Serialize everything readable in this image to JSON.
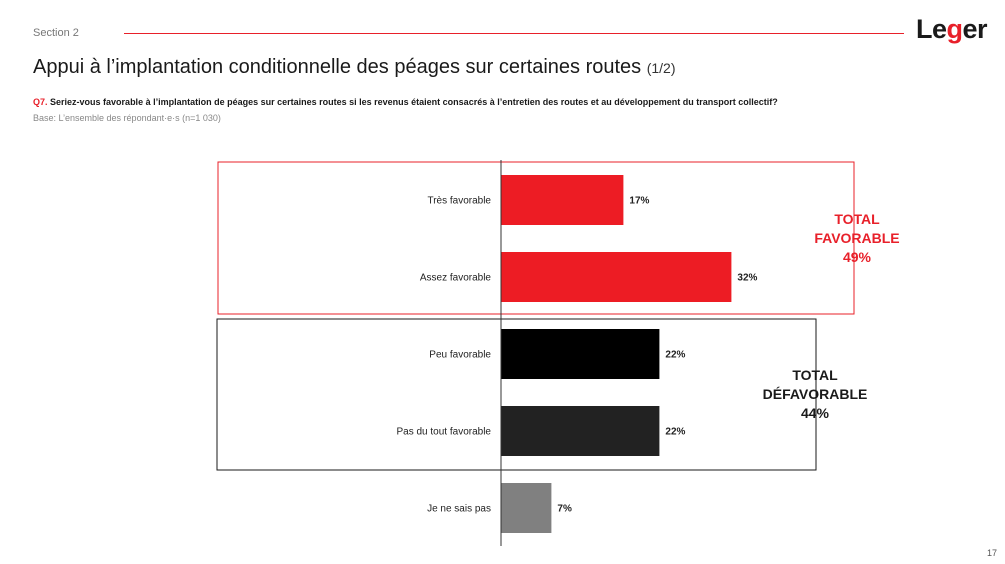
{
  "header": {
    "section": "Section 2",
    "logo_prefix": "Le",
    "logo_accent": "g",
    "logo_suffix": "er",
    "title": "Appui à l’implantation conditionnelle des péages sur certaines routes",
    "title_suffix": "(1/2)",
    "question_number": "Q7.",
    "question_text": "Seriez-vous favorable à l’implantation de péages sur certaines routes si les revenus étaient consacrés à l’entretien des routes et au développement du transport collectif?",
    "base": "Base: L’ensemble des répondant·e·s (n=1 030)"
  },
  "chart_data": {
    "type": "bar",
    "orientation": "horizontal",
    "categories": [
      "Très favorable",
      "Assez favorable",
      "Peu favorable",
      "Pas du tout favorable",
      "Je ne sais pas"
    ],
    "values": [
      17,
      32,
      22,
      22,
      7
    ],
    "value_labels": [
      "17%",
      "32%",
      "22%",
      "22%",
      "7%"
    ],
    "colors": [
      "#ed1c24",
      "#ed1c24",
      "#000000",
      "#222222",
      "#808080"
    ],
    "unit": "%",
    "xlim": [
      0,
      100
    ],
    "grid": false,
    "legend": "none"
  },
  "totals": {
    "favorable": {
      "line1": "TOTAL",
      "line2": "FAVORABLE",
      "value": "49%",
      "color": "#e8202a"
    },
    "defavorable": {
      "line1": "TOTAL",
      "line2": "DÉFAVORABLE",
      "value": "44%",
      "color": "#1a1a1a"
    }
  },
  "page_number": "17"
}
